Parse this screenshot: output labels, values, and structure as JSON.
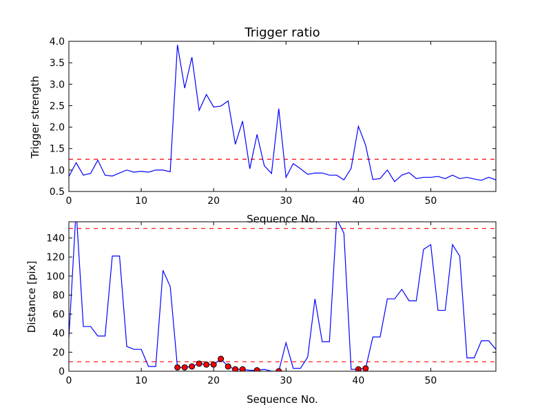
{
  "chart_data": [
    {
      "type": "line",
      "title": "Trigger ratio",
      "xlabel": "Sequence No.",
      "ylabel": "Trigger strength",
      "xlim": [
        0,
        59
      ],
      "ylim": [
        0.5,
        4.0
      ],
      "xticks": [
        0,
        10,
        20,
        30,
        40,
        50
      ],
      "xtick_labels": [
        "0",
        "10",
        "20",
        "30",
        "40",
        "50"
      ],
      "yticks": [
        0.5,
        1.0,
        1.5,
        2.0,
        2.5,
        3.0,
        3.5,
        4.0
      ],
      "ytick_labels": [
        "0.5",
        "1.0",
        "1.5",
        "2.0",
        "2.5",
        "3.0",
        "3.5",
        "4.0"
      ],
      "series": [
        {
          "color": "#0000ff",
          "x": [
            0,
            1,
            2,
            3,
            4,
            5,
            6,
            7,
            8,
            9,
            10,
            11,
            12,
            13,
            14,
            15,
            16,
            17,
            18,
            19,
            20,
            21,
            22,
            23,
            24,
            25,
            26,
            27,
            28,
            29,
            30,
            31,
            32,
            33,
            34,
            35,
            36,
            37,
            38,
            39,
            40,
            41,
            42,
            43,
            44,
            45,
            46,
            47,
            48,
            49,
            50,
            51,
            52,
            53,
            54,
            55,
            56,
            57,
            58,
            59
          ],
          "y": [
            0.85,
            1.17,
            0.88,
            0.92,
            1.23,
            0.88,
            0.86,
            0.93,
            1.0,
            0.95,
            0.97,
            0.95,
            1.0,
            1.0,
            0.96,
            3.92,
            2.91,
            3.63,
            2.39,
            2.76,
            2.47,
            2.49,
            2.61,
            1.6,
            2.14,
            1.03,
            1.83,
            1.1,
            0.92,
            2.43,
            0.83,
            1.15,
            1.03,
            0.9,
            0.93,
            0.93,
            0.88,
            0.88,
            0.77,
            1.04,
            2.02,
            1.58,
            0.78,
            0.8,
            1.0,
            0.73,
            0.88,
            0.94,
            0.8,
            0.83,
            0.83,
            0.85,
            0.8,
            0.88,
            0.8,
            0.83,
            0.79,
            0.76,
            0.83,
            0.77
          ]
        }
      ],
      "reference_lines": [
        {
          "orientation": "horizontal",
          "y": 1.25,
          "color": "#ff0000",
          "style": "dashed"
        }
      ]
    },
    {
      "type": "line",
      "title": "",
      "xlabel": "Sequence No.",
      "ylabel": "Distance [pix]",
      "xlim": [
        0,
        59
      ],
      "ylim": [
        0,
        157
      ],
      "xticks": [
        0,
        10,
        20,
        30,
        40,
        50
      ],
      "xtick_labels": [
        "0",
        "10",
        "20",
        "30",
        "40",
        "50"
      ],
      "yticks": [
        0,
        20,
        40,
        60,
        80,
        100,
        120,
        140
      ],
      "ytick_labels": [
        "0",
        "20",
        "40",
        "60",
        "80",
        "100",
        "120",
        "140"
      ],
      "series": [
        {
          "color": "#0000ff",
          "x": [
            0,
            1,
            2,
            3,
            4,
            5,
            6,
            7,
            8,
            9,
            10,
            11,
            12,
            13,
            14,
            15,
            16,
            17,
            18,
            19,
            20,
            21,
            22,
            23,
            24,
            25,
            26,
            27,
            28,
            29,
            30,
            31,
            32,
            33,
            34,
            35,
            36,
            37,
            38,
            39,
            40,
            41,
            42,
            43,
            44,
            45,
            46,
            47,
            48,
            49,
            50,
            51,
            52,
            53,
            54,
            55,
            56,
            57,
            58,
            59
          ],
          "y": [
            35,
            170,
            47,
            47,
            37,
            37,
            121,
            121,
            26,
            23,
            23,
            5,
            5,
            106,
            89,
            4,
            4,
            5,
            8,
            7,
            7,
            13,
            5,
            2,
            2,
            1,
            1,
            2,
            0,
            0,
            30,
            3,
            3,
            15,
            76,
            31,
            31,
            160,
            145,
            2,
            2,
            3,
            36,
            36,
            76,
            76,
            86,
            74,
            74,
            128,
            133,
            64,
            64,
            133,
            121,
            14,
            14,
            32,
            32,
            23
          ]
        },
        {
          "type": "scatter",
          "marker_color": "#ff0000",
          "x": [
            15,
            16,
            17,
            18,
            19,
            20,
            21,
            22,
            23,
            24,
            26,
            29,
            40,
            41
          ],
          "y": [
            4,
            4,
            5,
            8,
            7,
            7,
            13,
            5,
            2,
            2,
            1,
            0,
            2,
            3
          ]
        }
      ],
      "reference_lines": [
        {
          "orientation": "horizontal",
          "y": 150,
          "color": "#ff0000",
          "style": "dashed"
        },
        {
          "orientation": "horizontal",
          "y": 10,
          "color": "#ff0000",
          "style": "dashed"
        }
      ]
    }
  ]
}
